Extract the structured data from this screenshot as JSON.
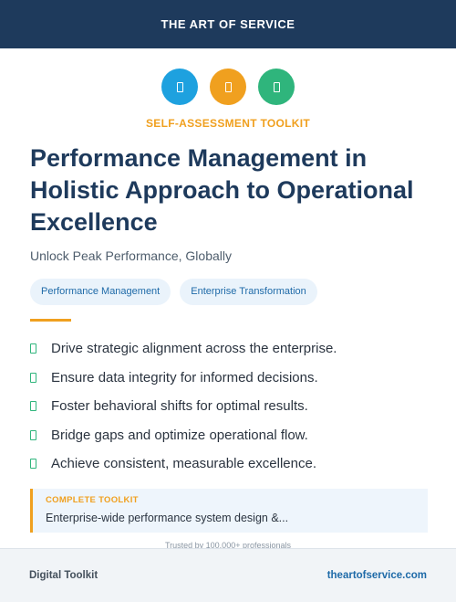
{
  "header": {
    "brand": "THE ART OF SERVICE"
  },
  "icons": [
    {
      "name": "document-icon",
      "color": "#1ea1df"
    },
    {
      "name": "document-icon",
      "color": "#f0a01f"
    },
    {
      "name": "document-icon",
      "color": "#2fb57c"
    }
  ],
  "kicker": "SELF-ASSESSMENT TOOLKIT",
  "title": "Performance Management in Holistic Approach to Operational Excellence",
  "subtitle": "Unlock Peak Performance, Globally",
  "tags": [
    "Performance Management",
    "Enterprise Transformation"
  ],
  "bullets": [
    "Drive strategic alignment across the enterprise.",
    "Ensure data integrity for informed decisions.",
    "Foster behavioral shifts for optimal results.",
    "Bridge gaps and optimize operational flow.",
    "Achieve consistent, measurable excellence."
  ],
  "callout": {
    "label": "COMPLETE TOOLKIT",
    "text": "Enterprise-wide performance system design &..."
  },
  "trusted": "Trusted by 100,000+ professionals",
  "footer": {
    "left": "Digital Toolkit",
    "right": "theartofservice.com"
  }
}
